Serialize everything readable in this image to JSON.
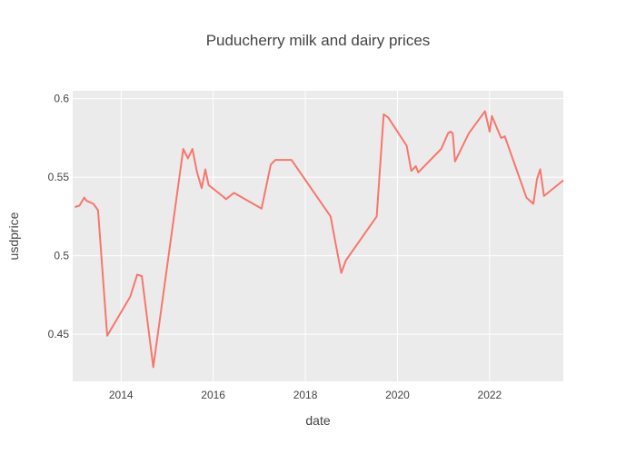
{
  "chart_data": {
    "type": "line",
    "title": "Puducherry milk and dairy prices",
    "xlabel": "date",
    "ylabel": "usdprice",
    "x_ticks": [
      "2014",
      "2016",
      "2018",
      "2020",
      "2022"
    ],
    "y_ticks": [
      "0.45",
      "0.5",
      "0.55",
      "0.6"
    ],
    "ylim": [
      0.42,
      0.605
    ],
    "xlim": [
      2012.95,
      2023.6
    ],
    "grid": true,
    "background": "#ebebeb",
    "line_color": "#f8766d",
    "series": [
      {
        "x": [
          2013.0,
          2013.1,
          2013.2,
          2013.25,
          2013.4,
          2013.5,
          2013.7,
          2014.2,
          2014.35,
          2014.45,
          2014.7,
          2015.35,
          2015.45,
          2015.55,
          2015.65,
          2015.75,
          2015.83,
          2015.9,
          2016.2,
          2016.28,
          2016.45,
          2017.05,
          2017.25,
          2017.35,
          2017.7,
          2018.55,
          2018.65,
          2018.78,
          2018.88,
          2019.55,
          2019.7,
          2019.8,
          2020.2,
          2020.3,
          2020.4,
          2020.45,
          2020.95,
          2021.1,
          2021.15,
          2021.2,
          2021.25,
          2021.55,
          2021.9,
          2022.0,
          2022.05,
          2022.25,
          2022.33,
          2022.8,
          2022.95,
          2023.03,
          2023.1,
          2023.18,
          2023.6
        ],
        "y": [
          0.531,
          0.532,
          0.537,
          0.535,
          0.533,
          0.529,
          0.449,
          0.474,
          0.488,
          0.487,
          0.429,
          0.568,
          0.562,
          0.568,
          0.553,
          0.543,
          0.555,
          0.545,
          0.538,
          0.536,
          0.54,
          0.53,
          0.558,
          0.561,
          0.561,
          0.525,
          0.509,
          0.489,
          0.497,
          0.525,
          0.59,
          0.588,
          0.57,
          0.554,
          0.557,
          0.553,
          0.568,
          0.578,
          0.579,
          0.578,
          0.56,
          0.578,
          0.592,
          0.579,
          0.589,
          0.575,
          0.576,
          0.537,
          0.533,
          0.549,
          0.555,
          0.538,
          0.548
        ]
      }
    ]
  }
}
